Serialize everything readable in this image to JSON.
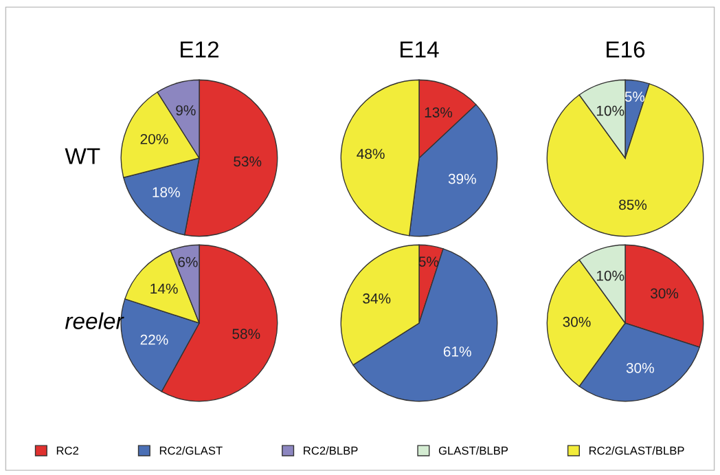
{
  "chart_data": [
    {
      "type": "pie",
      "title": "E12",
      "ylabel": "WT",
      "categories": [
        null,
        null,
        null,
        null
      ],
      "values": [
        53,
        18,
        20,
        9
      ],
      "colors": [
        "#e0312f",
        "#4a6fb5",
        "#f2ec3a",
        "#8c86c0"
      ],
      "value_labels": [
        "53%",
        "18%",
        "20%",
        "9%"
      ]
    },
    {
      "type": "pie",
      "title": "E14",
      "categories": [
        null,
        null,
        null
      ],
      "values": [
        13,
        39,
        48
      ],
      "colors": [
        "#e0312f",
        "#4a6fb5",
        "#f2ec3a"
      ],
      "value_labels": [
        "13%",
        "39%",
        "48%"
      ]
    },
    {
      "type": "pie",
      "title": "E16",
      "categories": [
        null,
        null,
        null
      ],
      "values": [
        5,
        85,
        10
      ],
      "colors": [
        "#4a6fb5",
        "#f2ec3a",
        "#d4ecd2"
      ],
      "value_labels": [
        "5%",
        "85%",
        "10%"
      ]
    },
    {
      "type": "pie",
      "ylabel": "reeler",
      "categories": [
        null,
        null,
        null,
        null
      ],
      "values": [
        58,
        22,
        14,
        6
      ],
      "colors": [
        "#e0312f",
        "#4a6fb5",
        "#f2ec3a",
        "#8c86c0"
      ],
      "value_labels": [
        "58%",
        "22%",
        "14%",
        "6%"
      ]
    },
    {
      "type": "pie",
      "categories": [
        null,
        null,
        null
      ],
      "values": [
        5,
        61,
        34
      ],
      "colors": [
        "#e0312f",
        "#4a6fb5",
        "#f2ec3a"
      ],
      "value_labels": [
        "5%",
        "61%",
        "34%"
      ]
    },
    {
      "type": "pie",
      "categories": [
        null,
        null,
        null,
        null
      ],
      "values": [
        30,
        30,
        30,
        10
      ],
      "colors": [
        "#e0312f",
        "#4a6fb5",
        "#f2ec3a",
        "#d4ecd2"
      ],
      "value_labels": [
        "30%",
        "30%",
        "30%",
        "10%"
      ]
    },
    {
      "type": "other",
      "categories": [
        "RC2",
        "RC2/GLAST",
        "RC2/BLBP",
        "GLAST/BLBP",
        "RC2/GLAST/BLBP"
      ],
      "colors": [
        "#e0312f",
        "#4a6fb5",
        "#8c86c0",
        "#d4ecd2",
        "#f2ec3a"
      ]
    }
  ]
}
